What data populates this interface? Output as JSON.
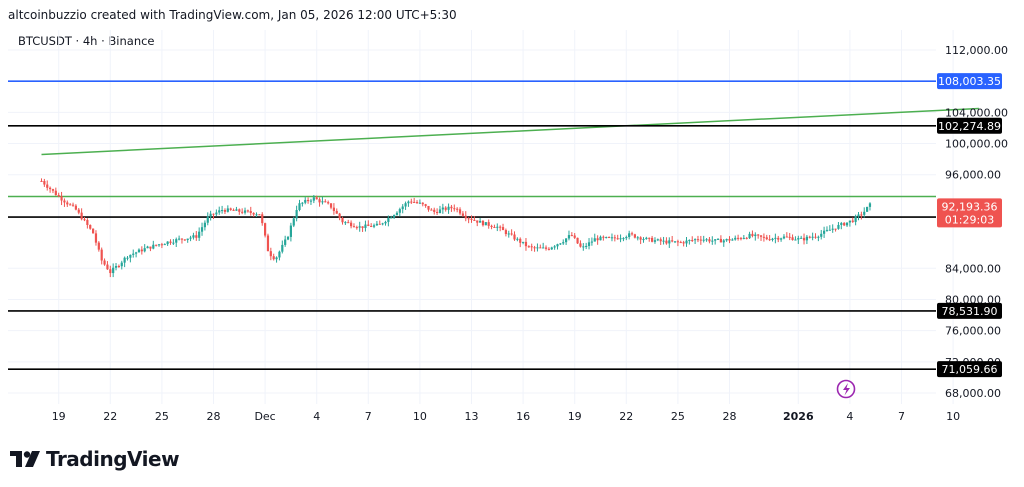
{
  "header": {
    "caption": "altcoinbuzzio created with TradingView.com, Jan 05, 2026 12:00 UTC+5:30",
    "symbol": "BTCUSDT · 4h · Binance"
  },
  "brand": {
    "name": "TradingView",
    "icon": "tradingview-logo-icon"
  },
  "colors": {
    "up": "#26a69a",
    "down": "#ef5350",
    "blue_line": "#2962ff",
    "green_line": "#4caf50",
    "black_line": "#000000",
    "current_price_bg": "#ef5350"
  },
  "chart_data": {
    "type": "candlestick",
    "symbol": "BTCUSDT",
    "timeframe": "4h",
    "exchange": "Binance",
    "ylim": [
      66500,
      115000
    ],
    "y_ticks": [
      68000,
      72000,
      76000,
      80000,
      84000,
      96000,
      100000,
      104000,
      112000
    ],
    "y_tick_labels": [
      "68,000.00",
      "72,000.00",
      "76,000.00",
      "80,000.00",
      "84,000.00",
      "96,000.00",
      "100,000.00",
      "104,000.00",
      "112,000.00"
    ],
    "x_ticks": [
      {
        "label": "19",
        "day": 1,
        "bold": false
      },
      {
        "label": "22",
        "day": 4,
        "bold": false
      },
      {
        "label": "25",
        "day": 7,
        "bold": false
      },
      {
        "label": "28",
        "day": 10,
        "bold": false
      },
      {
        "label": "Dec",
        "day": 13,
        "bold": false
      },
      {
        "label": "4",
        "day": 16,
        "bold": false
      },
      {
        "label": "7",
        "day": 19,
        "bold": false
      },
      {
        "label": "10",
        "day": 22,
        "bold": false
      },
      {
        "label": "13",
        "day": 25,
        "bold": false
      },
      {
        "label": "16",
        "day": 28,
        "bold": false
      },
      {
        "label": "19",
        "day": 31,
        "bold": false
      },
      {
        "label": "22",
        "day": 34,
        "bold": false
      },
      {
        "label": "25",
        "day": 37,
        "bold": false
      },
      {
        "label": "28",
        "day": 40,
        "bold": false
      },
      {
        "label": "2026",
        "day": 44,
        "bold": true
      },
      {
        "label": "4",
        "day": 47,
        "bold": false
      },
      {
        "label": "7",
        "day": 50,
        "bold": false
      },
      {
        "label": "10",
        "day": 53,
        "bold": false
      }
    ],
    "horizontal_levels": [
      {
        "price": 108003.35,
        "label": "108,003.35",
        "style": "blue"
      },
      {
        "price": 102274.89,
        "label": "102,274.89",
        "style": "black"
      },
      {
        "price": 90569.29,
        "label": "90,569.29",
        "style": "black"
      },
      {
        "price": 78531.9,
        "label": "78,531.90",
        "style": "black"
      },
      {
        "price": 71059.66,
        "label": "71,059.66",
        "style": "black"
      }
    ],
    "green_horizontal": 93200,
    "trend_line": {
      "from": {
        "day": 0,
        "price": 98600
      },
      "to": {
        "day": 54.5,
        "price": 104500
      }
    },
    "current_price": {
      "label": "92,193.36",
      "countdown": "01:29:03"
    },
    "close_path": [
      [
        0,
        95200
      ],
      [
        1,
        93200
      ],
      [
        2,
        91500
      ],
      [
        3,
        88500
      ],
      [
        3.5,
        85000
      ],
      [
        4,
        83500
      ],
      [
        4.5,
        84500
      ],
      [
        5,
        85600
      ],
      [
        6,
        86500
      ],
      [
        7,
        87200
      ],
      [
        8,
        87700
      ],
      [
        9,
        88100
      ],
      [
        9.7,
        90600
      ],
      [
        10.5,
        91500
      ],
      [
        11.5,
        91300
      ],
      [
        12.7,
        91000
      ],
      [
        13.2,
        86000
      ],
      [
        13.6,
        85200
      ],
      [
        14.3,
        88000
      ],
      [
        14.9,
        92100
      ],
      [
        15.8,
        93000
      ],
      [
        16.8,
        92000
      ],
      [
        17.5,
        90000
      ],
      [
        18.5,
        89300
      ],
      [
        19.6,
        89500
      ],
      [
        20.5,
        91000
      ],
      [
        21.4,
        92700
      ],
      [
        22.1,
        92200
      ],
      [
        22.8,
        91200
      ],
      [
        23.4,
        91600
      ],
      [
        24,
        91800
      ],
      [
        24.7,
        90600
      ],
      [
        25.6,
        89800
      ],
      [
        26.5,
        89300
      ],
      [
        27.4,
        88000
      ],
      [
        28.4,
        86600
      ],
      [
        29.4,
        86500
      ],
      [
        30.3,
        87500
      ],
      [
        30.8,
        88300
      ],
      [
        31.4,
        86500
      ],
      [
        32.2,
        87800
      ],
      [
        33.2,
        87800
      ],
      [
        34.2,
        88300
      ],
      [
        35.2,
        87700
      ],
      [
        36.2,
        87400
      ],
      [
        37.2,
        87300
      ],
      [
        38.2,
        87800
      ],
      [
        39.2,
        87500
      ],
      [
        40.2,
        87700
      ],
      [
        41.2,
        88200
      ],
      [
        42.2,
        87800
      ],
      [
        43.2,
        88000
      ],
      [
        44.2,
        87700
      ],
      [
        45.2,
        88300
      ],
      [
        46.2,
        89300
      ],
      [
        47.2,
        90200
      ],
      [
        47.8,
        91200
      ],
      [
        48.2,
        92193
      ]
    ]
  }
}
